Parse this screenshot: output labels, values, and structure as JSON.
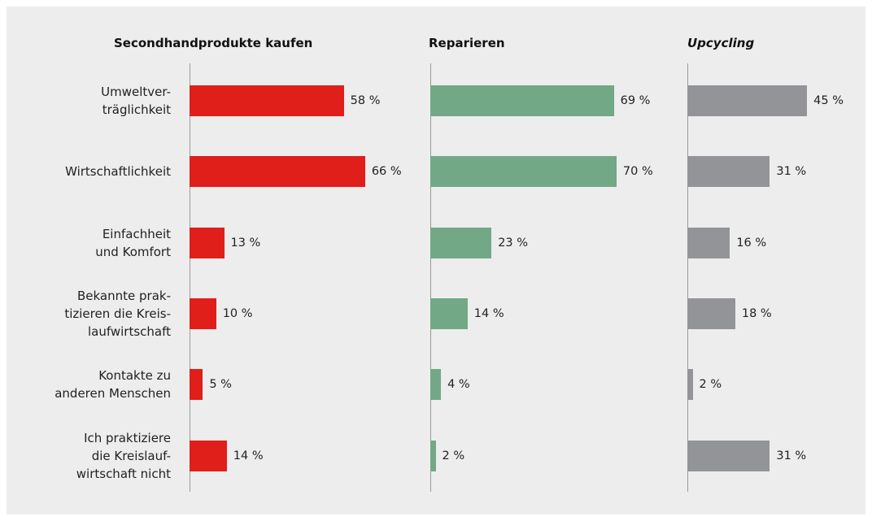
{
  "chart_data": {
    "type": "bar",
    "categories": [
      "Umweltver-\nträglichkeit",
      "Wirtschaftlichkeit",
      "Einfachheit\nund Komfort",
      "Bekannte prak-\ntizieren die Kreis-\nlaufwirtschaft",
      "Kontakte zu\nanderen Menschen",
      "Ich praktiziere\ndie Kreislauf-\nwirtschaft nicht"
    ],
    "series": [
      {
        "name": "Secondhandprodukte kaufen",
        "color": "#e01e1a",
        "values": [
          58,
          66,
          13,
          10,
          5,
          14
        ],
        "value_labels": [
          "58 %",
          "66 %",
          "13 %",
          "10 %",
          "5 %",
          "14 %"
        ]
      },
      {
        "name": "Reparieren",
        "color": "#72a886",
        "values": [
          69,
          70,
          23,
          14,
          4,
          2
        ],
        "value_labels": [
          "69 %",
          "70 %",
          "23 %",
          "14 %",
          "4 %",
          "2 %"
        ]
      },
      {
        "name": "Upcycling",
        "color": "#929497",
        "values": [
          45,
          31,
          16,
          18,
          2,
          31
        ],
        "value_labels": [
          "45 %",
          "31 %",
          "16 %",
          "18 %",
          "2 %",
          "31 %"
        ]
      }
    ]
  }
}
